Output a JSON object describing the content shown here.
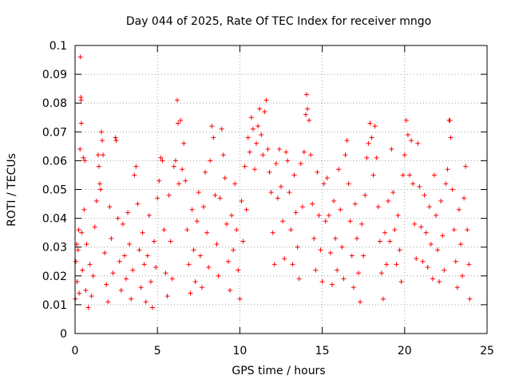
{
  "chart_data": {
    "type": "scatter",
    "title": "Day 044 of 2025, Rate Of TEC Index for receiver mngo",
    "xlabel": "GPS time / hours",
    "ylabel": "ROTI / TECUs",
    "xlim": [
      0,
      25
    ],
    "ylim": [
      0,
      0.1
    ],
    "x_ticks": [
      0,
      5,
      10,
      15,
      20,
      25
    ],
    "x_tick_labels": [
      "0",
      "5",
      "10",
      "15",
      "20",
      "25"
    ],
    "y_ticks": [
      0,
      0.01,
      0.02,
      0.03,
      0.04,
      0.05,
      0.06,
      0.07,
      0.08,
      0.09,
      0.1
    ],
    "y_tick_labels": [
      "0",
      "0.01",
      "0.02",
      "0.03",
      "0.04",
      "0.05",
      "0.06",
      "0.07",
      "0.08",
      "0.09",
      "0.1"
    ],
    "grid": true,
    "marker": "+",
    "marker_color": "#ff0000",
    "series": [
      {
        "points": [
          [
            0.02,
            0.012
          ],
          [
            0.05,
            0.025
          ],
          [
            0.1,
            0.031
          ],
          [
            0.12,
            0.018
          ],
          [
            0.18,
            0.029
          ],
          [
            0.22,
            0.036
          ],
          [
            0.25,
            0.014
          ],
          [
            0.3,
            0.064
          ],
          [
            0.32,
            0.096
          ],
          [
            0.35,
            0.082
          ],
          [
            0.37,
            0.081
          ],
          [
            0.38,
            0.073
          ],
          [
            0.4,
            0.035
          ],
          [
            0.45,
            0.022
          ],
          [
            0.5,
            0.061
          ],
          [
            0.55,
            0.043
          ],
          [
            0.6,
            0.06
          ],
          [
            0.65,
            0.015
          ],
          [
            0.7,
            0.031
          ],
          [
            0.8,
            0.009
          ],
          [
            0.9,
            0.024
          ],
          [
            1.0,
            0.013
          ],
          [
            1.1,
            0.02
          ],
          [
            1.2,
            0.037
          ],
          [
            1.3,
            0.046
          ],
          [
            1.4,
            0.062
          ],
          [
            1.45,
            0.058
          ],
          [
            1.5,
            0.052
          ],
          [
            1.55,
            0.05
          ],
          [
            1.6,
            0.07
          ],
          [
            1.65,
            0.067
          ],
          [
            1.7,
            0.062
          ],
          [
            1.8,
            0.028
          ],
          [
            1.9,
            0.017
          ],
          [
            2.0,
            0.011
          ],
          [
            2.1,
            0.044
          ],
          [
            2.2,
            0.033
          ],
          [
            2.3,
            0.021
          ],
          [
            2.45,
            0.068
          ],
          [
            2.5,
            0.067
          ],
          [
            2.6,
            0.04
          ],
          [
            2.7,
            0.025
          ],
          [
            2.8,
            0.015
          ],
          [
            2.9,
            0.038
          ],
          [
            3.0,
            0.027
          ],
          [
            3.1,
            0.019
          ],
          [
            3.2,
            0.042
          ],
          [
            3.3,
            0.031
          ],
          [
            3.4,
            0.012
          ],
          [
            3.5,
            0.022
          ],
          [
            3.6,
            0.055
          ],
          [
            3.7,
            0.058
          ],
          [
            3.8,
            0.045
          ],
          [
            3.9,
            0.029
          ],
          [
            4.0,
            0.016
          ],
          [
            4.1,
            0.035
          ],
          [
            4.2,
            0.024
          ],
          [
            4.3,
            0.011
          ],
          [
            4.4,
            0.027
          ],
          [
            4.5,
            0.041
          ],
          [
            4.6,
            0.018
          ],
          [
            4.7,
            0.009
          ],
          [
            4.8,
            0.032
          ],
          [
            4.9,
            0.023
          ],
          [
            5.0,
            0.047
          ],
          [
            5.1,
            0.053
          ],
          [
            5.2,
            0.061
          ],
          [
            5.3,
            0.06
          ],
          [
            5.4,
            0.036
          ],
          [
            5.5,
            0.021
          ],
          [
            5.6,
            0.013
          ],
          [
            5.7,
            0.048
          ],
          [
            5.8,
            0.032
          ],
          [
            5.9,
            0.019
          ],
          [
            6.0,
            0.058
          ],
          [
            6.1,
            0.06
          ],
          [
            6.2,
            0.081
          ],
          [
            6.25,
            0.073
          ],
          [
            6.3,
            0.052
          ],
          [
            6.4,
            0.074
          ],
          [
            6.5,
            0.057
          ],
          [
            6.6,
            0.066
          ],
          [
            6.7,
            0.053
          ],
          [
            6.8,
            0.036
          ],
          [
            6.9,
            0.024
          ],
          [
            7.0,
            0.014
          ],
          [
            7.1,
            0.043
          ],
          [
            7.2,
            0.029
          ],
          [
            7.3,
            0.018
          ],
          [
            7.4,
            0.039
          ],
          [
            7.5,
            0.049
          ],
          [
            7.6,
            0.027
          ],
          [
            7.7,
            0.016
          ],
          [
            7.8,
            0.044
          ],
          [
            7.9,
            0.056
          ],
          [
            8.0,
            0.035
          ],
          [
            8.1,
            0.023
          ],
          [
            8.2,
            0.06
          ],
          [
            8.3,
            0.072
          ],
          [
            8.4,
            0.068
          ],
          [
            8.5,
            0.048
          ],
          [
            8.6,
            0.031
          ],
          [
            8.7,
            0.02
          ],
          [
            8.8,
            0.047
          ],
          [
            8.9,
            0.071
          ],
          [
            9.0,
            0.062
          ],
          [
            9.1,
            0.054
          ],
          [
            9.2,
            0.038
          ],
          [
            9.3,
            0.025
          ],
          [
            9.4,
            0.015
          ],
          [
            9.5,
            0.041
          ],
          [
            9.6,
            0.029
          ],
          [
            9.7,
            0.052
          ],
          [
            9.8,
            0.036
          ],
          [
            9.9,
            0.022
          ],
          [
            10.0,
            0.012
          ],
          [
            10.1,
            0.046
          ],
          [
            10.2,
            0.032
          ],
          [
            10.3,
            0.058
          ],
          [
            10.4,
            0.043
          ],
          [
            10.5,
            0.068
          ],
          [
            10.6,
            0.063
          ],
          [
            10.7,
            0.075
          ],
          [
            10.8,
            0.071
          ],
          [
            10.9,
            0.057
          ],
          [
            11.0,
            0.066
          ],
          [
            11.1,
            0.072
          ],
          [
            11.2,
            0.078
          ],
          [
            11.3,
            0.069
          ],
          [
            11.4,
            0.062
          ],
          [
            11.5,
            0.077
          ],
          [
            11.6,
            0.081
          ],
          [
            11.7,
            0.064
          ],
          [
            11.8,
            0.056
          ],
          [
            11.9,
            0.049
          ],
          [
            12.0,
            0.035
          ],
          [
            12.1,
            0.024
          ],
          [
            12.2,
            0.059
          ],
          [
            12.3,
            0.047
          ],
          [
            12.4,
            0.064
          ],
          [
            12.5,
            0.051
          ],
          [
            12.6,
            0.039
          ],
          [
            12.7,
            0.026
          ],
          [
            12.8,
            0.063
          ],
          [
            12.9,
            0.06
          ],
          [
            13.0,
            0.049
          ],
          [
            13.1,
            0.036
          ],
          [
            13.2,
            0.024
          ],
          [
            13.3,
            0.055
          ],
          [
            13.4,
            0.042
          ],
          [
            13.5,
            0.03
          ],
          [
            13.6,
            0.019
          ],
          [
            13.7,
            0.059
          ],
          [
            13.8,
            0.044
          ],
          [
            13.9,
            0.063
          ],
          [
            14.0,
            0.076
          ],
          [
            14.05,
            0.083
          ],
          [
            14.1,
            0.078
          ],
          [
            14.2,
            0.074
          ],
          [
            14.3,
            0.062
          ],
          [
            14.4,
            0.045
          ],
          [
            14.5,
            0.033
          ],
          [
            14.6,
            0.022
          ],
          [
            14.7,
            0.056
          ],
          [
            14.8,
            0.041
          ],
          [
            14.9,
            0.029
          ],
          [
            15.0,
            0.018
          ],
          [
            15.1,
            0.052
          ],
          [
            15.2,
            0.039
          ],
          [
            15.3,
            0.054
          ],
          [
            15.4,
            0.041
          ],
          [
            15.5,
            0.028
          ],
          [
            15.6,
            0.017
          ],
          [
            15.7,
            0.046
          ],
          [
            15.8,
            0.033
          ],
          [
            15.9,
            0.022
          ],
          [
            16.0,
            0.057
          ],
          [
            16.1,
            0.043
          ],
          [
            16.2,
            0.03
          ],
          [
            16.3,
            0.019
          ],
          [
            16.4,
            0.062
          ],
          [
            16.5,
            0.067
          ],
          [
            16.6,
            0.052
          ],
          [
            16.7,
            0.039
          ],
          [
            16.8,
            0.027
          ],
          [
            16.9,
            0.016
          ],
          [
            17.0,
            0.045
          ],
          [
            17.1,
            0.033
          ],
          [
            17.2,
            0.021
          ],
          [
            17.3,
            0.011
          ],
          [
            17.4,
            0.038
          ],
          [
            17.5,
            0.027
          ],
          [
            17.6,
            0.048
          ],
          [
            17.7,
            0.061
          ],
          [
            17.8,
            0.066
          ],
          [
            17.9,
            0.073
          ],
          [
            18.0,
            0.068
          ],
          [
            18.1,
            0.055
          ],
          [
            18.2,
            0.072
          ],
          [
            18.3,
            0.061
          ],
          [
            18.4,
            0.044
          ],
          [
            18.5,
            0.032
          ],
          [
            18.6,
            0.021
          ],
          [
            18.7,
            0.012
          ],
          [
            18.8,
            0.035
          ],
          [
            18.9,
            0.024
          ],
          [
            19.0,
            0.046
          ],
          [
            19.1,
            0.032
          ],
          [
            19.2,
            0.064
          ],
          [
            19.3,
            0.049
          ],
          [
            19.4,
            0.036
          ],
          [
            19.5,
            0.024
          ],
          [
            19.6,
            0.041
          ],
          [
            19.7,
            0.029
          ],
          [
            19.8,
            0.018
          ],
          [
            19.9,
            0.055
          ],
          [
            20.0,
            0.062
          ],
          [
            20.1,
            0.074
          ],
          [
            20.2,
            0.069
          ],
          [
            20.3,
            0.055
          ],
          [
            20.4,
            0.067
          ],
          [
            20.5,
            0.052
          ],
          [
            20.6,
            0.038
          ],
          [
            20.7,
            0.026
          ],
          [
            20.8,
            0.066
          ],
          [
            20.9,
            0.051
          ],
          [
            21.0,
            0.037
          ],
          [
            21.1,
            0.025
          ],
          [
            21.2,
            0.048
          ],
          [
            21.3,
            0.035
          ],
          [
            21.4,
            0.023
          ],
          [
            21.5,
            0.044
          ],
          [
            21.6,
            0.031
          ],
          [
            21.7,
            0.019
          ],
          [
            21.8,
            0.055
          ],
          [
            21.9,
            0.041
          ],
          [
            22.0,
            0.029
          ],
          [
            22.1,
            0.018
          ],
          [
            22.2,
            0.046
          ],
          [
            22.3,
            0.034
          ],
          [
            22.4,
            0.022
          ],
          [
            22.5,
            0.052
          ],
          [
            22.6,
            0.057
          ],
          [
            22.7,
            0.074
          ],
          [
            22.75,
            0.074
          ],
          [
            22.8,
            0.068
          ],
          [
            22.9,
            0.05
          ],
          [
            23.0,
            0.036
          ],
          [
            23.1,
            0.025
          ],
          [
            23.2,
            0.016
          ],
          [
            23.3,
            0.043
          ],
          [
            23.4,
            0.031
          ],
          [
            23.5,
            0.02
          ],
          [
            23.6,
            0.047
          ],
          [
            23.7,
            0.058
          ],
          [
            23.8,
            0.036
          ],
          [
            23.9,
            0.024
          ],
          [
            23.95,
            0.012
          ]
        ]
      }
    ]
  }
}
